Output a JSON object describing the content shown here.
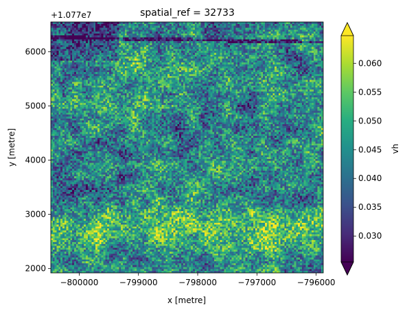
{
  "chart_data": {
    "type": "heatmap",
    "title": "spatial_ref = 32733",
    "xlabel": "x [metre]",
    "ylabel": "y [metre]",
    "y_offset_label": "+1.077e7",
    "x_ticks": [
      {
        "value": -800000,
        "label": "−800000"
      },
      {
        "value": -799000,
        "label": "−799000"
      },
      {
        "value": -798000,
        "label": "−798000"
      },
      {
        "value": -797000,
        "label": "−797000"
      },
      {
        "value": -796000,
        "label": "−796000"
      }
    ],
    "y_ticks": [
      {
        "value": 2000,
        "label": "2000"
      },
      {
        "value": 3000,
        "label": "3000"
      },
      {
        "value": 4000,
        "label": "4000"
      },
      {
        "value": 5000,
        "label": "5000"
      },
      {
        "value": 6000,
        "label": "6000"
      }
    ],
    "xlim": [
      -800480,
      -795880
    ],
    "ylim": [
      1920,
      6550
    ],
    "colorbar": {
      "label": "vh",
      "range": [
        0.0255,
        0.0648
      ],
      "extend": "both",
      "colormap": "viridis",
      "ticks": [
        {
          "value": 0.03,
          "label": "0.030"
        },
        {
          "value": 0.035,
          "label": "0.035"
        },
        {
          "value": 0.04,
          "label": "0.040"
        },
        {
          "value": 0.045,
          "label": "0.045"
        },
        {
          "value": 0.05,
          "label": "0.050"
        },
        {
          "value": 0.055,
          "label": "0.055"
        },
        {
          "value": 0.06,
          "label": "0.060"
        }
      ]
    },
    "grid_resolution": {
      "cols": 140,
      "rows": 130
    },
    "features": {
      "bright_band_y": 2800,
      "dark_road_y_start": 6280,
      "dark_road_y_end": 6190
    }
  }
}
